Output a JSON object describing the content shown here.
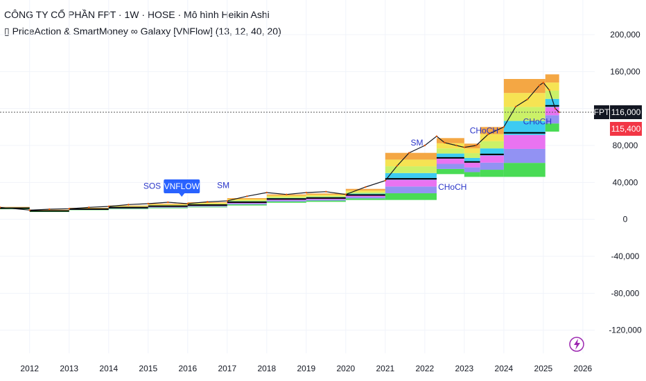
{
  "header": {
    "title": "CÔNG TY CỔ PHẦN FPT · 1W · HOSE · Mô hình Heikin Ashi",
    "indicator": "▯ PriceAction & SmartMoney ∞ Galaxy [VNFlow] (13, 12, 40, 20)"
  },
  "colors": {
    "price": "#131722",
    "band_green": "#3fd94c",
    "band_blue": "#8c8cf2",
    "band_magenta": "#e86bf0",
    "band_cyan": "#33c8f0",
    "band_lime": "#c8f060",
    "band_yellow": "#f5e14a",
    "band_orange": "#f3a23a",
    "label_price": "#131722",
    "label_red": "#f23645",
    "annotation_text": "#2934c8",
    "vnflow_badge": "#2962ff"
  },
  "chart_data": {
    "type": "line",
    "ylim": [
      -145000,
      230000
    ],
    "xlim": [
      2011.25,
      2026.3
    ],
    "y_ticks": [
      "200,000",
      "160,000",
      "120,000",
      "80,000",
      "40,000",
      "0",
      "-40,000",
      "-80,000",
      "-120,000"
    ],
    "y_tick_values": [
      200000,
      160000,
      120000,
      80000,
      40000,
      0,
      -40000,
      -80000,
      -120000
    ],
    "x_ticks": [
      "2012",
      "2013",
      "2014",
      "2015",
      "2016",
      "2017",
      "2018",
      "2019",
      "2020",
      "2021",
      "2022",
      "2023",
      "2024",
      "2025",
      "2026"
    ],
    "x_tick_values": [
      2012,
      2013,
      2014,
      2015,
      2016,
      2017,
      2018,
      2019,
      2020,
      2021,
      2022,
      2023,
      2024,
      2025,
      2026
    ],
    "price": {
      "x": [
        2011.25,
        2012,
        2012.5,
        2013,
        2013.5,
        2014,
        2014.5,
        2015,
        2015.5,
        2016,
        2016.5,
        2017,
        2017.5,
        2018,
        2018.5,
        2019,
        2019.5,
        2020,
        2020.5,
        2021,
        2021.3,
        2021.6,
        2022,
        2022.3,
        2022.5,
        2022.8,
        2023,
        2023.3,
        2023.6,
        2024,
        2024.3,
        2024.6,
        2024.9,
        2025,
        2025.15,
        2025.3,
        2025.4
      ],
      "y": [
        13000,
        10000,
        11000,
        11500,
        13000,
        14000,
        16000,
        17000,
        18500,
        17000,
        19000,
        20000,
        25000,
        29000,
        27000,
        29000,
        30000,
        27000,
        35000,
        42000,
        58000,
        72000,
        80000,
        90000,
        83000,
        80000,
        78000,
        80000,
        92000,
        100000,
        122000,
        130000,
        145000,
        148000,
        140000,
        120000,
        116000
      ]
    },
    "band_steps": [
      {
        "x0": 2011.25,
        "x1": 2012.0,
        "bottom": 11000,
        "top": 13500
      },
      {
        "x0": 2012.0,
        "x1": 2013.0,
        "bottom": 8000,
        "top": 10500
      },
      {
        "x0": 2013.0,
        "x1": 2014.0,
        "bottom": 10000,
        "top": 12500
      },
      {
        "x0": 2014.0,
        "x1": 2015.0,
        "bottom": 11000,
        "top": 15000
      },
      {
        "x0": 2015.0,
        "x1": 2016.0,
        "bottom": 12000,
        "top": 17000
      },
      {
        "x0": 2016.0,
        "x1": 2017.0,
        "bottom": 13000,
        "top": 18500
      },
      {
        "x0": 2017.0,
        "x1": 2018.0,
        "bottom": 15000,
        "top": 23000
      },
      {
        "x0": 2018.0,
        "x1": 2019.0,
        "bottom": 18000,
        "top": 27000
      },
      {
        "x0": 2019.0,
        "x1": 2020.0,
        "bottom": 19000,
        "top": 28000
      },
      {
        "x0": 2020.0,
        "x1": 2021.0,
        "bottom": 21000,
        "top": 33000
      },
      {
        "x0": 2021.0,
        "x1": 2022.3,
        "bottom": 21000,
        "top": 72000
      },
      {
        "x0": 2022.3,
        "x1": 2023.0,
        "bottom": 49000,
        "top": 88000
      },
      {
        "x0": 2023.0,
        "x1": 2023.4,
        "bottom": 46000,
        "top": 82000
      },
      {
        "x0": 2023.4,
        "x1": 2024.0,
        "bottom": 46000,
        "top": 100000
      },
      {
        "x0": 2024.0,
        "x1": 2025.05,
        "bottom": 46000,
        "top": 152000
      },
      {
        "x0": 2025.05,
        "x1": 2025.4,
        "bottom": 95000,
        "top": 157000
      }
    ],
    "annotations": [
      {
        "text": "SOS",
        "x": 2015.1,
        "y": 33000
      },
      {
        "text": "VNFLOW",
        "x": 2015.85,
        "y": 35000
      },
      {
        "text": "SM",
        "x": 2016.9,
        "y": 34000
      },
      {
        "text": "SM",
        "x": 2021.8,
        "y": 80000
      },
      {
        "text": "CHoCH",
        "x": 2023.5,
        "y": 93000
      },
      {
        "text": "CHoCH",
        "x": 2022.7,
        "y": 32000
      },
      {
        "text": "CHoCH",
        "x": 2024.85,
        "y": 103000
      }
    ],
    "last_price_label": "116,000",
    "ticker_label": "FPT",
    "second_price_label": "115,400",
    "last_price_value": 116000,
    "second_price_value": 115400
  }
}
